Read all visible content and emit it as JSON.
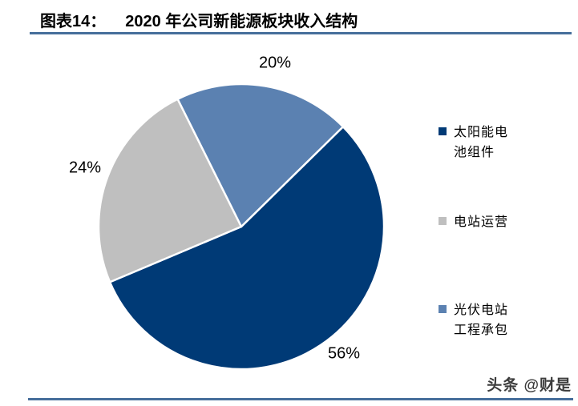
{
  "header": {
    "figure_label": "图表14：",
    "title": "2020 年公司新能源板块收入结构"
  },
  "chart_data": {
    "type": "pie",
    "title": "2020 年公司新能源板块收入结构",
    "start_angle_deg": 45.5,
    "legend_position": "right",
    "grid": false,
    "slices": [
      {
        "label": "太阳能电池组件",
        "value": 56,
        "display": "56%",
        "color": "#003A76"
      },
      {
        "label": "电站运营",
        "value": 24,
        "display": "24%",
        "color": "#BFBFBF"
      },
      {
        "label": "光伏电站工程承包",
        "value": 20,
        "display": "20%",
        "color": "#5B81B1"
      }
    ]
  },
  "watermark": {
    "text": "头条 @财是"
  },
  "style": {
    "rule_color": "#466E9B",
    "background": "#FFFFFF",
    "label_color": "#000000"
  }
}
